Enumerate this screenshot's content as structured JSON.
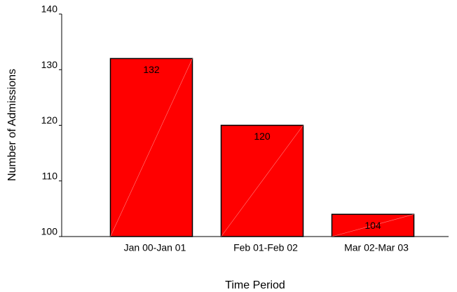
{
  "chart_data": {
    "type": "bar",
    "xlabel": "Time Period",
    "ylabel": "Number of Admissions",
    "categories": [
      "Jan 00-Jan 01",
      "Feb 01-Feb 02",
      "Mar 02-Mar 03"
    ],
    "values": [
      132,
      120,
      104
    ],
    "color": "#ff0000",
    "ylim": [
      100,
      140
    ],
    "yticks": [
      100,
      110,
      120,
      130,
      140
    ]
  }
}
